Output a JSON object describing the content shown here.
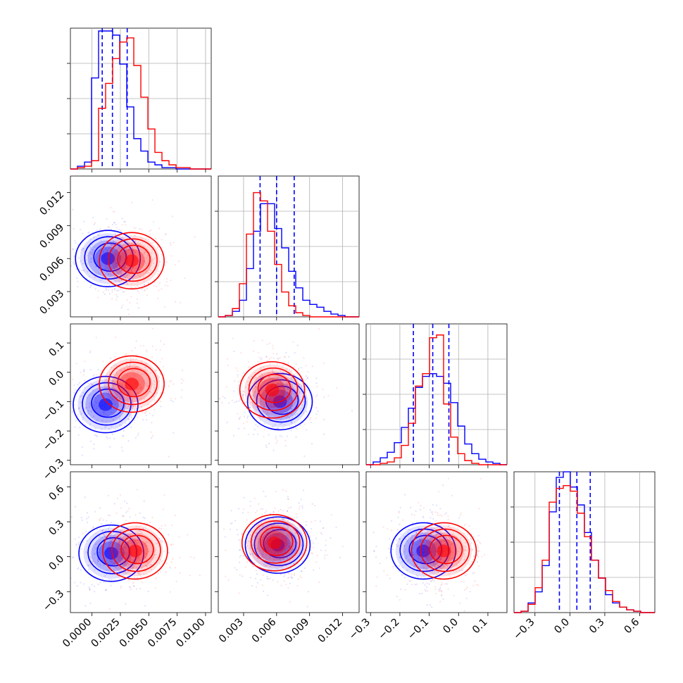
{
  "chart_data": {
    "type": "corner",
    "parameters": [
      {
        "range": [
          -0.0019,
          0.0105
        ],
        "ticks": [
          "0.0000",
          "0.0025",
          "0.0050",
          "0.0075",
          "0.0100"
        ],
        "tick_values": [
          0,
          0.0025,
          0.005,
          0.0075,
          0.01
        ]
      },
      {
        "range": [
          0.0007,
          0.0135
        ],
        "ticks": [
          "0.003",
          "0.006",
          "0.009",
          "0.012"
        ],
        "tick_values": [
          0.003,
          0.006,
          0.009,
          0.012
        ]
      },
      {
        "range": [
          -0.315,
          0.165
        ],
        "ticks": [
          "−0.3",
          "−0.2",
          "−0.1",
          "0.0",
          "0.1"
        ],
        "tick_values": [
          -0.3,
          -0.2,
          -0.1,
          0,
          0.1
        ]
      },
      {
        "range": [
          -0.48,
          0.73
        ],
        "ticks": [
          "−0.3",
          "0.0",
          "0.3",
          "0.6"
        ],
        "tick_values": [
          -0.3,
          0,
          0.3,
          0.6
        ]
      }
    ],
    "series": [
      {
        "color": "#0000ff",
        "histograms": [
          [
            0,
            0.02,
            0.05,
            0.66,
            1.0,
            1.0,
            0.97,
            0.76,
            0.45,
            0.22,
            0.13,
            0.05,
            0.03,
            0.01,
            0.01,
            0,
            0,
            0,
            0,
            0
          ],
          [
            0,
            0.01,
            0.04,
            0.12,
            0.35,
            0.62,
            0.82,
            0.82,
            0.64,
            0.5,
            0.33,
            0.21,
            0.12,
            0.09,
            0.07,
            0.04,
            0.02,
            0.01,
            0,
            0
          ],
          [
            0,
            0.02,
            0.05,
            0.09,
            0.16,
            0.27,
            0.41,
            0.56,
            0.64,
            0.66,
            0.64,
            0.59,
            0.45,
            0.28,
            0.15,
            0.08,
            0.04,
            0.02,
            0.01,
            0
          ],
          [
            0,
            0.01,
            0.07,
            0.15,
            0.34,
            0.73,
            0.98,
            1.02,
            0.91,
            0.78,
            0.58,
            0.38,
            0.25,
            0.13,
            0.07,
            0.04,
            0.02,
            0.01,
            0,
            0
          ]
        ],
        "quantile_lines": [
          [
            0.0009,
            0.0018,
            0.0031
          ],
          [
            0.0045,
            0.006,
            0.0076
          ],
          [
            -0.154,
            -0.088,
            -0.033
          ],
          [
            -0.09,
            0.06,
            0.175
          ]
        ],
        "pair_centers": {
          "1-0": [
            0.0014,
            0.006
          ],
          "2-0": [
            0.0012,
            -0.11
          ],
          "2-1": [
            0.0063,
            -0.1
          ],
          "3-0": [
            0.0017,
            0.03
          ],
          "3-1": [
            0.0061,
            0.1
          ],
          "3-2": [
            -0.12,
            0.05
          ]
        }
      },
      {
        "color": "#ff0000",
        "histograms": [
          [
            0,
            0.01,
            0.02,
            0.06,
            0.44,
            0.62,
            0.8,
            0.92,
            0.95,
            0.75,
            0.52,
            0.29,
            0.12,
            0.06,
            0.03,
            0.01,
            0.01,
            0,
            0,
            0
          ],
          [
            0,
            0.01,
            0.06,
            0.24,
            0.6,
            0.9,
            0.84,
            0.62,
            0.38,
            0.18,
            0.08,
            0.03,
            0.01,
            0,
            0,
            0,
            0,
            0,
            0,
            0
          ],
          [
            0,
            0,
            0.01,
            0.02,
            0.05,
            0.14,
            0.3,
            0.57,
            0.66,
            0.92,
            0.94,
            0.44,
            0.2,
            0.08,
            0.03,
            0.01,
            0,
            0,
            0,
            0
          ],
          [
            0,
            0.01,
            0.06,
            0.18,
            0.38,
            0.8,
            0.9,
            0.92,
            0.88,
            0.72,
            0.55,
            0.38,
            0.25,
            0.16,
            0.08,
            0.04,
            0.02,
            0.01,
            0,
            0
          ]
        ],
        "pair_centers": {
          "1-0": [
            0.0035,
            0.0058
          ],
          "2-0": [
            0.0035,
            -0.04
          ],
          "2-1": [
            0.0056,
            -0.06
          ],
          "3-0": [
            0.0038,
            0.05
          ],
          "3-1": [
            0.0058,
            0.12
          ],
          "3-2": [
            -0.05,
            0.05
          ]
        }
      }
    ]
  }
}
